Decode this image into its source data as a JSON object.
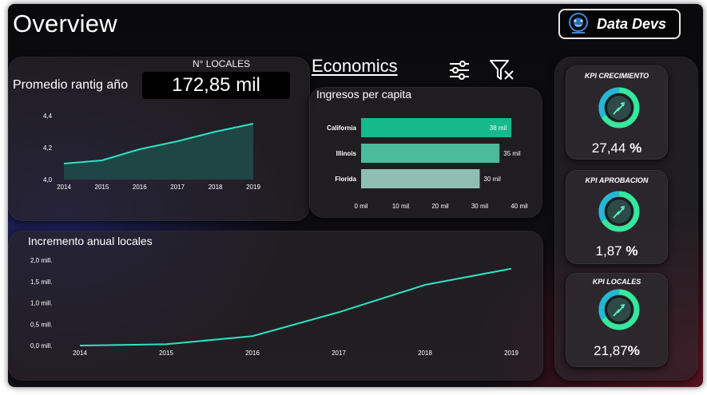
{
  "header": {
    "title": "Overview",
    "brand_name": "Data Devs"
  },
  "locales": {
    "label": "N° LOCALES",
    "value": "172,85 mil"
  },
  "promedio": {
    "label": "Promedio rantig año"
  },
  "economics": {
    "title": "Economics",
    "subtitle": "Ingresos per capita"
  },
  "incremento": {
    "label": "Incremento anual locales"
  },
  "kpis": [
    {
      "title": "KPI CRECIMIENTO",
      "value_num": "27,44",
      "value_unit": "%"
    },
    {
      "title": "KPI APROBACION",
      "value_num": "1,87",
      "value_unit": "%"
    },
    {
      "title": "KPI  LOCALES",
      "value_num": "21,87",
      "value_unit": "%"
    }
  ],
  "colors": {
    "accent": "#2de2c4",
    "bar1": "#16b98a",
    "bar2": "#4abb9b",
    "bar3": "#8fbfb0",
    "ring": "#3de8a0"
  },
  "chart_data": [
    {
      "id": "rating",
      "type": "area",
      "title": "Promedio rantig año",
      "x": [
        "2014",
        "2015",
        "2016",
        "2017",
        "2018",
        "2019"
      ],
      "values": [
        4.1,
        4.12,
        4.19,
        4.24,
        4.3,
        4.35
      ],
      "ylim": [
        4.0,
        4.4
      ],
      "yticks": [
        "4,0",
        "4,2",
        "4,4"
      ],
      "ytick_values": [
        4.0,
        4.2,
        4.4
      ]
    },
    {
      "id": "ingresos",
      "type": "bar",
      "orientation": "horizontal",
      "title": "Ingresos per capita",
      "categories": [
        "California",
        "Illinois",
        "Florida"
      ],
      "values": [
        38,
        35,
        30
      ],
      "data_labels": [
        "38 mil",
        "35 mil",
        "30 mil"
      ],
      "xlim": [
        0,
        40
      ],
      "xticks": [
        "0 mil",
        "10 mil",
        "20 mil",
        "30 mil",
        "40 mil"
      ],
      "xtick_values": [
        0,
        10,
        20,
        30,
        40
      ]
    },
    {
      "id": "incremento",
      "type": "line",
      "title": "Incremento anual locales",
      "x": [
        "2014",
        "2015",
        "2016",
        "2017",
        "2018",
        "2019"
      ],
      "values": [
        0.0,
        0.03,
        0.22,
        0.78,
        1.42,
        1.8
      ],
      "ylim": [
        0,
        2.0
      ],
      "yticks": [
        "0,0 mill.",
        "0,5 mill.",
        "1,0 mill.",
        "1,5 mill.",
        "2,0 mill."
      ],
      "ytick_values": [
        0,
        0.5,
        1.0,
        1.5,
        2.0
      ]
    }
  ]
}
